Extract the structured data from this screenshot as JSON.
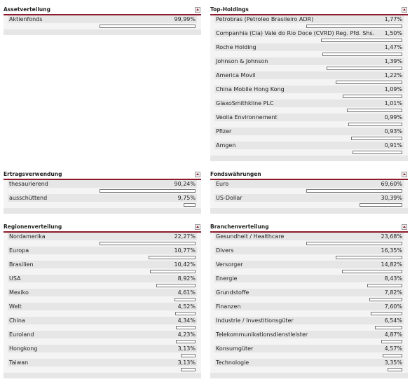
{
  "panels": [
    {
      "title": "Assetverteilung",
      "items": [
        {
          "name": "Aktienfonds",
          "value": 99.99,
          "label": "99,99%"
        }
      ]
    },
    {
      "title": "Top-Holdings",
      "items": [
        {
          "name": "Petrobras (Petroleo Brasileiro ADR)",
          "value": 1.77,
          "label": "1,77%"
        },
        {
          "name": "Companhia (Cia) Vale do Rio Doce (CVRD) Reg. Pfd. Shs.",
          "value": 1.5,
          "label": "1,50%"
        },
        {
          "name": "Roche Holding",
          "value": 1.47,
          "label": "1,47%"
        },
        {
          "name": "Johnson & Johnson",
          "value": 1.39,
          "label": "1,39%"
        },
        {
          "name": "America Movil",
          "value": 1.22,
          "label": "1,22%"
        },
        {
          "name": "China Mobile Hong Kong",
          "value": 1.09,
          "label": "1,09%"
        },
        {
          "name": "GlaxoSmithkline PLC",
          "value": 1.01,
          "label": "1,01%"
        },
        {
          "name": "Veolia Environnement",
          "value": 0.99,
          "label": "0,99%"
        },
        {
          "name": "Pfizer",
          "value": 0.93,
          "label": "0,93%"
        },
        {
          "name": "Amgen",
          "value": 0.91,
          "label": "0,91%"
        }
      ]
    },
    {
      "title": "Ertragsverwendung",
      "items": [
        {
          "name": "thesaurierend",
          "value": 90.24,
          "label": "90,24%"
        },
        {
          "name": "ausschüttend",
          "value": 9.75,
          "label": "9,75%"
        }
      ]
    },
    {
      "title": "Fondswährungen",
      "items": [
        {
          "name": "Euro",
          "value": 69.6,
          "label": "69,60%"
        },
        {
          "name": "US-Dollar",
          "value": 30.39,
          "label": "30,39%"
        }
      ]
    },
    {
      "title": "Regionenverteilung",
      "items": [
        {
          "name": "Nordamerika",
          "value": 22.27,
          "label": "22,27%"
        },
        {
          "name": "Europa",
          "value": 10.77,
          "label": "10,77%"
        },
        {
          "name": "Brasilien",
          "value": 10.42,
          "label": "10,42%"
        },
        {
          "name": "USA",
          "value": 8.92,
          "label": "8,92%"
        },
        {
          "name": "Mexiko",
          "value": 4.61,
          "label": "4,61%"
        },
        {
          "name": "Welt",
          "value": 4.52,
          "label": "4,52%"
        },
        {
          "name": "China",
          "value": 4.34,
          "label": "4,34%"
        },
        {
          "name": "Euroland",
          "value": 4.23,
          "label": "4,23%"
        },
        {
          "name": "Hongkong",
          "value": 3.13,
          "label": "3,13%"
        },
        {
          "name": "Taiwan",
          "value": 3.13,
          "label": "3,13%"
        }
      ]
    },
    {
      "title": "Branchenverteilung",
      "items": [
        {
          "name": "Gesundheit / Healthcare",
          "value": 23.68,
          "label": "23,68%"
        },
        {
          "name": "Divers",
          "value": 16.35,
          "label": "16,35%"
        },
        {
          "name": "Versorger",
          "value": 14.82,
          "label": "14,82%"
        },
        {
          "name": "Energie",
          "value": 8.43,
          "label": "8,43%"
        },
        {
          "name": "Grundstoffe",
          "value": 7.82,
          "label": "7,82%"
        },
        {
          "name": "Finanzen",
          "value": 7.6,
          "label": "7,60%"
        },
        {
          "name": "Industrie / Investitionsgüter",
          "value": 6.54,
          "label": "6,54%"
        },
        {
          "name": "Telekommunikationsdienstleister",
          "value": 4.87,
          "label": "4,87%"
        },
        {
          "name": "Konsumgüter",
          "value": 4.57,
          "label": "4,57%"
        },
        {
          "name": "Technologie",
          "value": 3.35,
          "label": "3,35%"
        }
      ]
    }
  ]
}
